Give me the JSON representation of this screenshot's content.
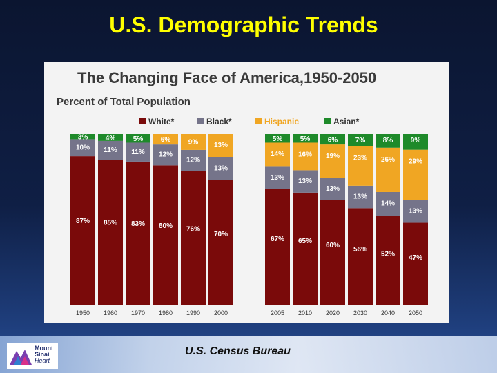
{
  "slide": {
    "title": "U.S. Demographic Trends",
    "source": "U.S. Census Bureau"
  },
  "logo": {
    "line1": "Mount",
    "line2": "Sinai",
    "line3": "Heart"
  },
  "colors": {
    "white": "#7a0a0a",
    "black": "#75748a",
    "hispanic": "#f0a623",
    "asian": "#1e8a2a",
    "pct_white_text": "#ffffff",
    "pct_dark_text": "#ffffff"
  },
  "chart_data": {
    "type": "bar",
    "stacked": true,
    "title": "The Changing Face of America,1950-2050",
    "subtitle": "Percent of Total Population",
    "legend": [
      "White*",
      "Black*",
      "Hispanic",
      "Asian*"
    ],
    "legend_position": "top",
    "categories": [
      "1950",
      "1960",
      "1970",
      "1980",
      "1990",
      "2000",
      "2005",
      "2010",
      "2020",
      "2030",
      "2040",
      "2050"
    ],
    "series": [
      {
        "name": "White*",
        "values": [
          87,
          85,
          83,
          80,
          76,
          70,
          67,
          65,
          60,
          56,
          52,
          47
        ]
      },
      {
        "name": "Black*",
        "values": [
          10,
          11,
          11,
          12,
          12,
          13,
          13,
          13,
          13,
          13,
          14,
          13
        ]
      },
      {
        "name": "Hispanic",
        "values": [
          null,
          null,
          null,
          6,
          9,
          13,
          14,
          16,
          19,
          23,
          26,
          29
        ]
      },
      {
        "name": "Asian*",
        "values": [
          3,
          4,
          5,
          null,
          null,
          null,
          5,
          5,
          6,
          7,
          8,
          9
        ]
      }
    ],
    "labels": {
      "White*": [
        "87%",
        "85%",
        "83%",
        "80%",
        "76%",
        "70%",
        "67%",
        "65%",
        "60%",
        "56%",
        "52%",
        "47%"
      ],
      "Black*": [
        "10%",
        "11%",
        "11%",
        "12%",
        "12%",
        "13%",
        "13%",
        "13%",
        "13%",
        "13%",
        "14%",
        "13%"
      ],
      "Hispanic": [
        "",
        "",
        "",
        "6%",
        "9%",
        "13%",
        "14%",
        "16%",
        "19%",
        "23%",
        "26%",
        "29%"
      ],
      "Asian*": [
        "3%",
        "4%",
        "5%",
        "",
        "",
        "",
        "5%",
        "5%",
        "6%",
        "7%",
        "8%",
        "9%"
      ]
    },
    "ylim": [
      0,
      100
    ]
  }
}
